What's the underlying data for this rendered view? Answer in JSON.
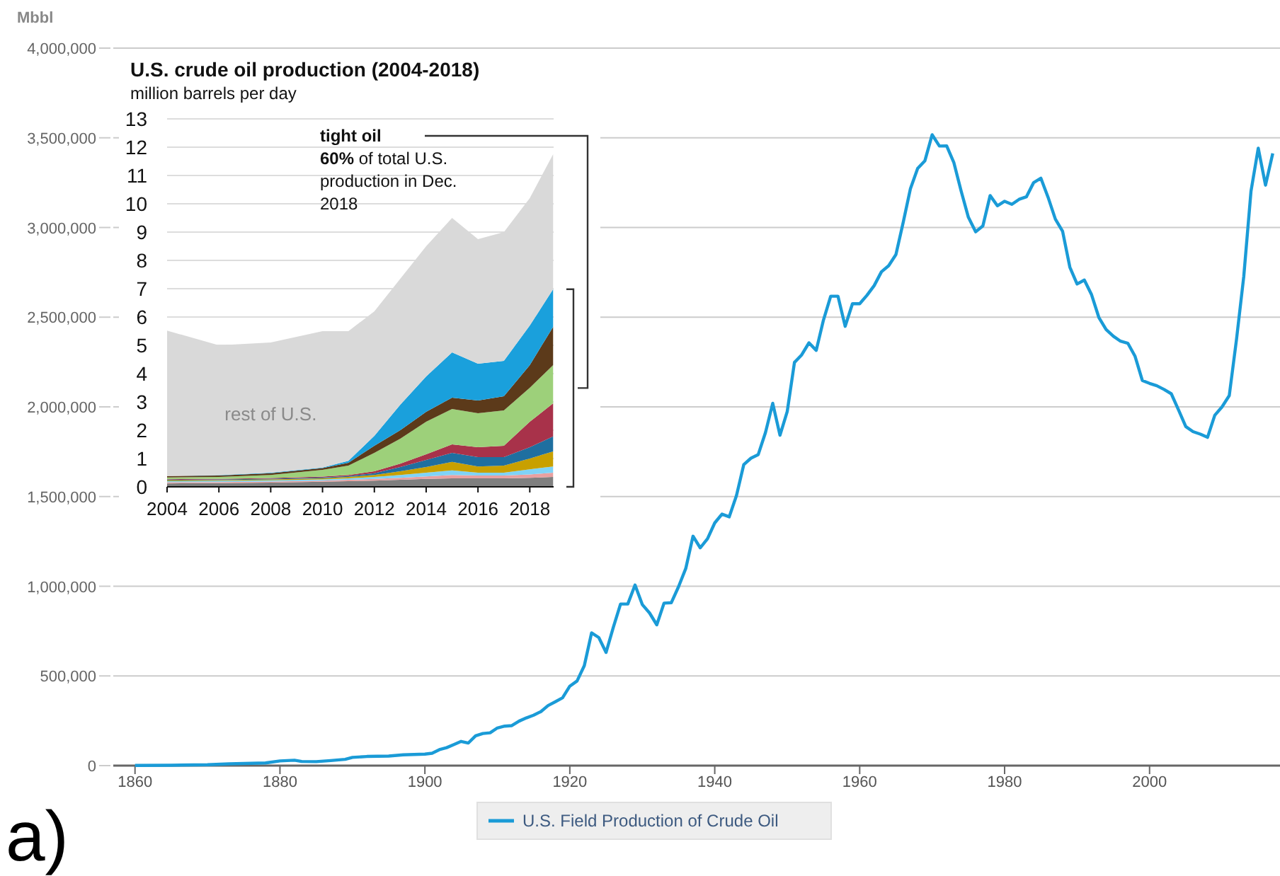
{
  "chart_data": [
    {
      "type": "line",
      "ylabel": "Mbbl",
      "annotations": [
        "a)"
      ],
      "grid": "y",
      "legend": "bottom",
      "xlim": [
        1857,
        2018
      ],
      "xticks": [
        1860,
        1880,
        1900,
        1920,
        1940,
        1960,
        1980,
        2000
      ],
      "ylim": [
        0,
        4000000
      ],
      "yticks": [
        {
          "value": 0,
          "label": "0"
        },
        {
          "value": 500000,
          "label": "500,000"
        },
        {
          "value": 1000000,
          "label": "1,000,000"
        },
        {
          "value": 1500000,
          "label": "1,500,000"
        },
        {
          "value": 2000000,
          "label": "2,000,000"
        },
        {
          "value": 2500000,
          "label": "2,500,000"
        },
        {
          "value": 3000000,
          "label": "3,000,000"
        },
        {
          "value": 3500000,
          "label": "3,500,000"
        },
        {
          "value": 4000000,
          "label": "4,000,000"
        }
      ],
      "series": [
        {
          "name": "U.S. Field Production of Crude Oil",
          "color": "#1a9bd7",
          "x": [
            1860,
            1865,
            1870,
            1873,
            1875,
            1878,
            1880,
            1882,
            1883,
            1885,
            1887,
            1889,
            1890,
            1892,
            1895,
            1897,
            1900,
            1901,
            1902,
            1903,
            1904,
            1905,
            1906,
            1907,
            1908,
            1909,
            1910,
            1911,
            1912,
            1913,
            1914,
            1915,
            1916,
            1917,
            1918,
            1919,
            1920,
            1921,
            1922,
            1923,
            1924,
            1925,
            1926,
            1927,
            1928,
            1929,
            1930,
            1931,
            1932,
            1933,
            1934,
            1935,
            1936,
            1937,
            1938,
            1939,
            1940,
            1941,
            1942,
            1943,
            1944,
            1945,
            1946,
            1947,
            1948,
            1949,
            1950,
            1951,
            1952,
            1953,
            1954,
            1955,
            1956,
            1957,
            1958,
            1959,
            1960,
            1961,
            1962,
            1963,
            1964,
            1965,
            1966,
            1967,
            1968,
            1969,
            1970,
            1971,
            1972,
            1973,
            1974,
            1975,
            1976,
            1977,
            1978,
            1979,
            1980,
            1981,
            1982,
            1983,
            1984,
            1985,
            1986,
            1987,
            1988,
            1989,
            1990,
            1991,
            1992,
            1993,
            1994,
            1995,
            1996,
            1997,
            1998,
            1999,
            2000,
            2001,
            2002,
            2003,
            2004,
            2005,
            2006,
            2007,
            2008,
            2009,
            2010,
            2011,
            2012,
            2013,
            2014,
            2015,
            2016,
            2017
          ],
          "values": [
            1000,
            2000,
            5000,
            10000,
            12000,
            15000,
            26000,
            30000,
            23000,
            22000,
            28000,
            35000,
            46000,
            51000,
            53000,
            60000,
            64000,
            69000,
            89000,
            100000,
            117000,
            135000,
            126000,
            166000,
            179000,
            183000,
            210000,
            220000,
            223000,
            248000,
            266000,
            281000,
            301000,
            335000,
            356000,
            378000,
            443000,
            472000,
            557000,
            740000,
            714000,
            631000,
            771000,
            901000,
            901000,
            1007000,
            898000,
            851000,
            785000,
            906000,
            908000,
            997000,
            1099000,
            1279000,
            1214000,
            1265000,
            1353000,
            1402000,
            1387000,
            1506000,
            1678000,
            1714000,
            1734000,
            1857000,
            2020000,
            1842000,
            1974000,
            2248000,
            2290000,
            2357000,
            2315000,
            2484000,
            2617000,
            2617000,
            2449000,
            2575000,
            2575000,
            2622000,
            2676000,
            2753000,
            2787000,
            2849000,
            3028000,
            3216000,
            3329000,
            3372000,
            3517000,
            3454000,
            3455000,
            3361000,
            3203000,
            3057000,
            2976000,
            3009000,
            3178000,
            3121000,
            3146000,
            3129000,
            3157000,
            3171000,
            3250000,
            3275000,
            3168000,
            3047000,
            2979000,
            2779000,
            2685000,
            2707000,
            2625000,
            2499000,
            2431000,
            2394000,
            2366000,
            2355000,
            2282000,
            2147000,
            2131000,
            2118000,
            2097000,
            2073000,
            1983000,
            1890000,
            1862000,
            1848000,
            1830000,
            1953000,
            2000000,
            2063000,
            2377000,
            2727000,
            3203000,
            3442000,
            3236000,
            3413000
          ]
        }
      ]
    },
    {
      "type": "area",
      "stacked": true,
      "title": "U.S. crude oil production (2004-2018)",
      "subtitle": "million barrels per day",
      "annotations": [
        "tight oil",
        "60% of total U.S. production in Dec. 2018"
      ],
      "grid": "y",
      "xlim": [
        2004,
        2018.92
      ],
      "xticks": [
        2004,
        2006,
        2008,
        2010,
        2012,
        2014,
        2016,
        2018
      ],
      "ylim": [
        0,
        13
      ],
      "yticks": [
        0,
        1,
        2,
        3,
        4,
        5,
        6,
        7,
        8,
        9,
        10,
        11,
        12,
        13
      ],
      "x": [
        2004,
        2006,
        2008,
        2010,
        2011,
        2012,
        2013,
        2014,
        2015,
        2016,
        2017,
        2018,
        2018.9
      ],
      "series": [
        {
          "color": "#7f7f7f",
          "values": [
            0.12,
            0.13,
            0.15,
            0.18,
            0.2,
            0.22,
            0.25,
            0.28,
            0.3,
            0.3,
            0.3,
            0.32,
            0.35
          ]
        },
        {
          "color": "#e8a0a0",
          "values": [
            0.04,
            0.04,
            0.04,
            0.04,
            0.05,
            0.06,
            0.07,
            0.09,
            0.12,
            0.1,
            0.1,
            0.12,
            0.15
          ]
        },
        {
          "color": "#7fd3f7",
          "values": [
            0.04,
            0.04,
            0.04,
            0.04,
            0.05,
            0.07,
            0.1,
            0.13,
            0.16,
            0.1,
            0.1,
            0.18,
            0.22
          ]
        },
        {
          "color": "#c8a000",
          "values": [
            0.03,
            0.03,
            0.03,
            0.04,
            0.05,
            0.07,
            0.13,
            0.2,
            0.3,
            0.22,
            0.25,
            0.38,
            0.53
          ]
        },
        {
          "color": "#1f6fa0",
          "values": [
            0.02,
            0.02,
            0.03,
            0.03,
            0.03,
            0.06,
            0.15,
            0.25,
            0.32,
            0.33,
            0.3,
            0.4,
            0.53
          ]
        },
        {
          "color": "#a8324a",
          "values": [
            0.02,
            0.02,
            0.02,
            0.03,
            0.04,
            0.07,
            0.12,
            0.2,
            0.3,
            0.35,
            0.4,
            0.9,
            1.17
          ]
        },
        {
          "color": "#9dd07a",
          "values": [
            0.06,
            0.07,
            0.11,
            0.24,
            0.33,
            0.65,
            0.88,
            1.15,
            1.25,
            1.2,
            1.25,
            1.2,
            1.35
          ]
        },
        {
          "color": "#5c3a1a",
          "values": [
            0.05,
            0.05,
            0.06,
            0.06,
            0.1,
            0.25,
            0.3,
            0.35,
            0.4,
            0.45,
            0.5,
            0.8,
            1.35
          ]
        },
        {
          "color": "#1aa0dc",
          "values": [
            0,
            0.01,
            0.02,
            0.02,
            0.07,
            0.35,
            0.9,
            1.25,
            1.6,
            1.3,
            1.25,
            1.4,
            1.33
          ]
        },
        {
          "name": "rest of U.S.",
          "color": "#d9d9d9",
          "values": [
            5.14,
            4.59,
            4.6,
            4.82,
            4.58,
            4.4,
            4.45,
            4.6,
            4.75,
            4.4,
            4.55,
            4.5,
            4.77
          ]
        }
      ]
    }
  ]
}
